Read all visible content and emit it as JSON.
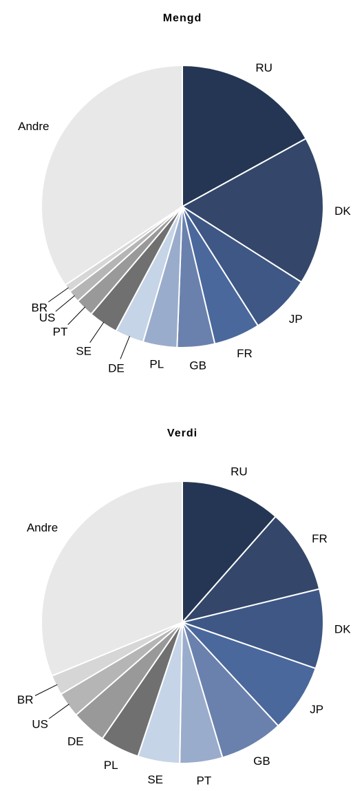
{
  "chart_data": [
    {
      "type": "pie",
      "title": "Mengd",
      "categories": [
        "RU",
        "DK",
        "JP",
        "FR",
        "GB",
        "PL",
        "DE",
        "SE",
        "PT",
        "US",
        "BR",
        "Andre"
      ],
      "values": [
        17,
        17,
        7,
        5.3,
        4.3,
        3.9,
        3.3,
        3.4,
        2.1,
        1.4,
        0.9,
        34.4
      ],
      "colors": [
        "#243653",
        "#34476a",
        "#3e5785",
        "#4a689c",
        "#6a81ad",
        "#9aaccb",
        "#c5d4e6",
        "#707070",
        "#999999",
        "#b5b5b5",
        "#d6d6d6",
        "#e8e8e8"
      ]
    },
    {
      "type": "pie",
      "title": "Verdi",
      "categories": [
        "RU",
        "FR",
        "DK",
        "JP",
        "GB",
        "PT",
        "SE",
        "PL",
        "DE",
        "US",
        "BR",
        "Andre"
      ],
      "values": [
        11.5,
        9.7,
        9.1,
        7.8,
        7.3,
        4.9,
        4.8,
        4.5,
        4,
        2.9,
        2.3,
        31.2
      ],
      "colors": [
        "#243653",
        "#34476a",
        "#3e5785",
        "#4a689c",
        "#6a81ad",
        "#9aaccb",
        "#c5d4e6",
        "#707070",
        "#999999",
        "#b5b5b5",
        "#d6d6d6",
        "#e8e8e8"
      ]
    }
  ]
}
